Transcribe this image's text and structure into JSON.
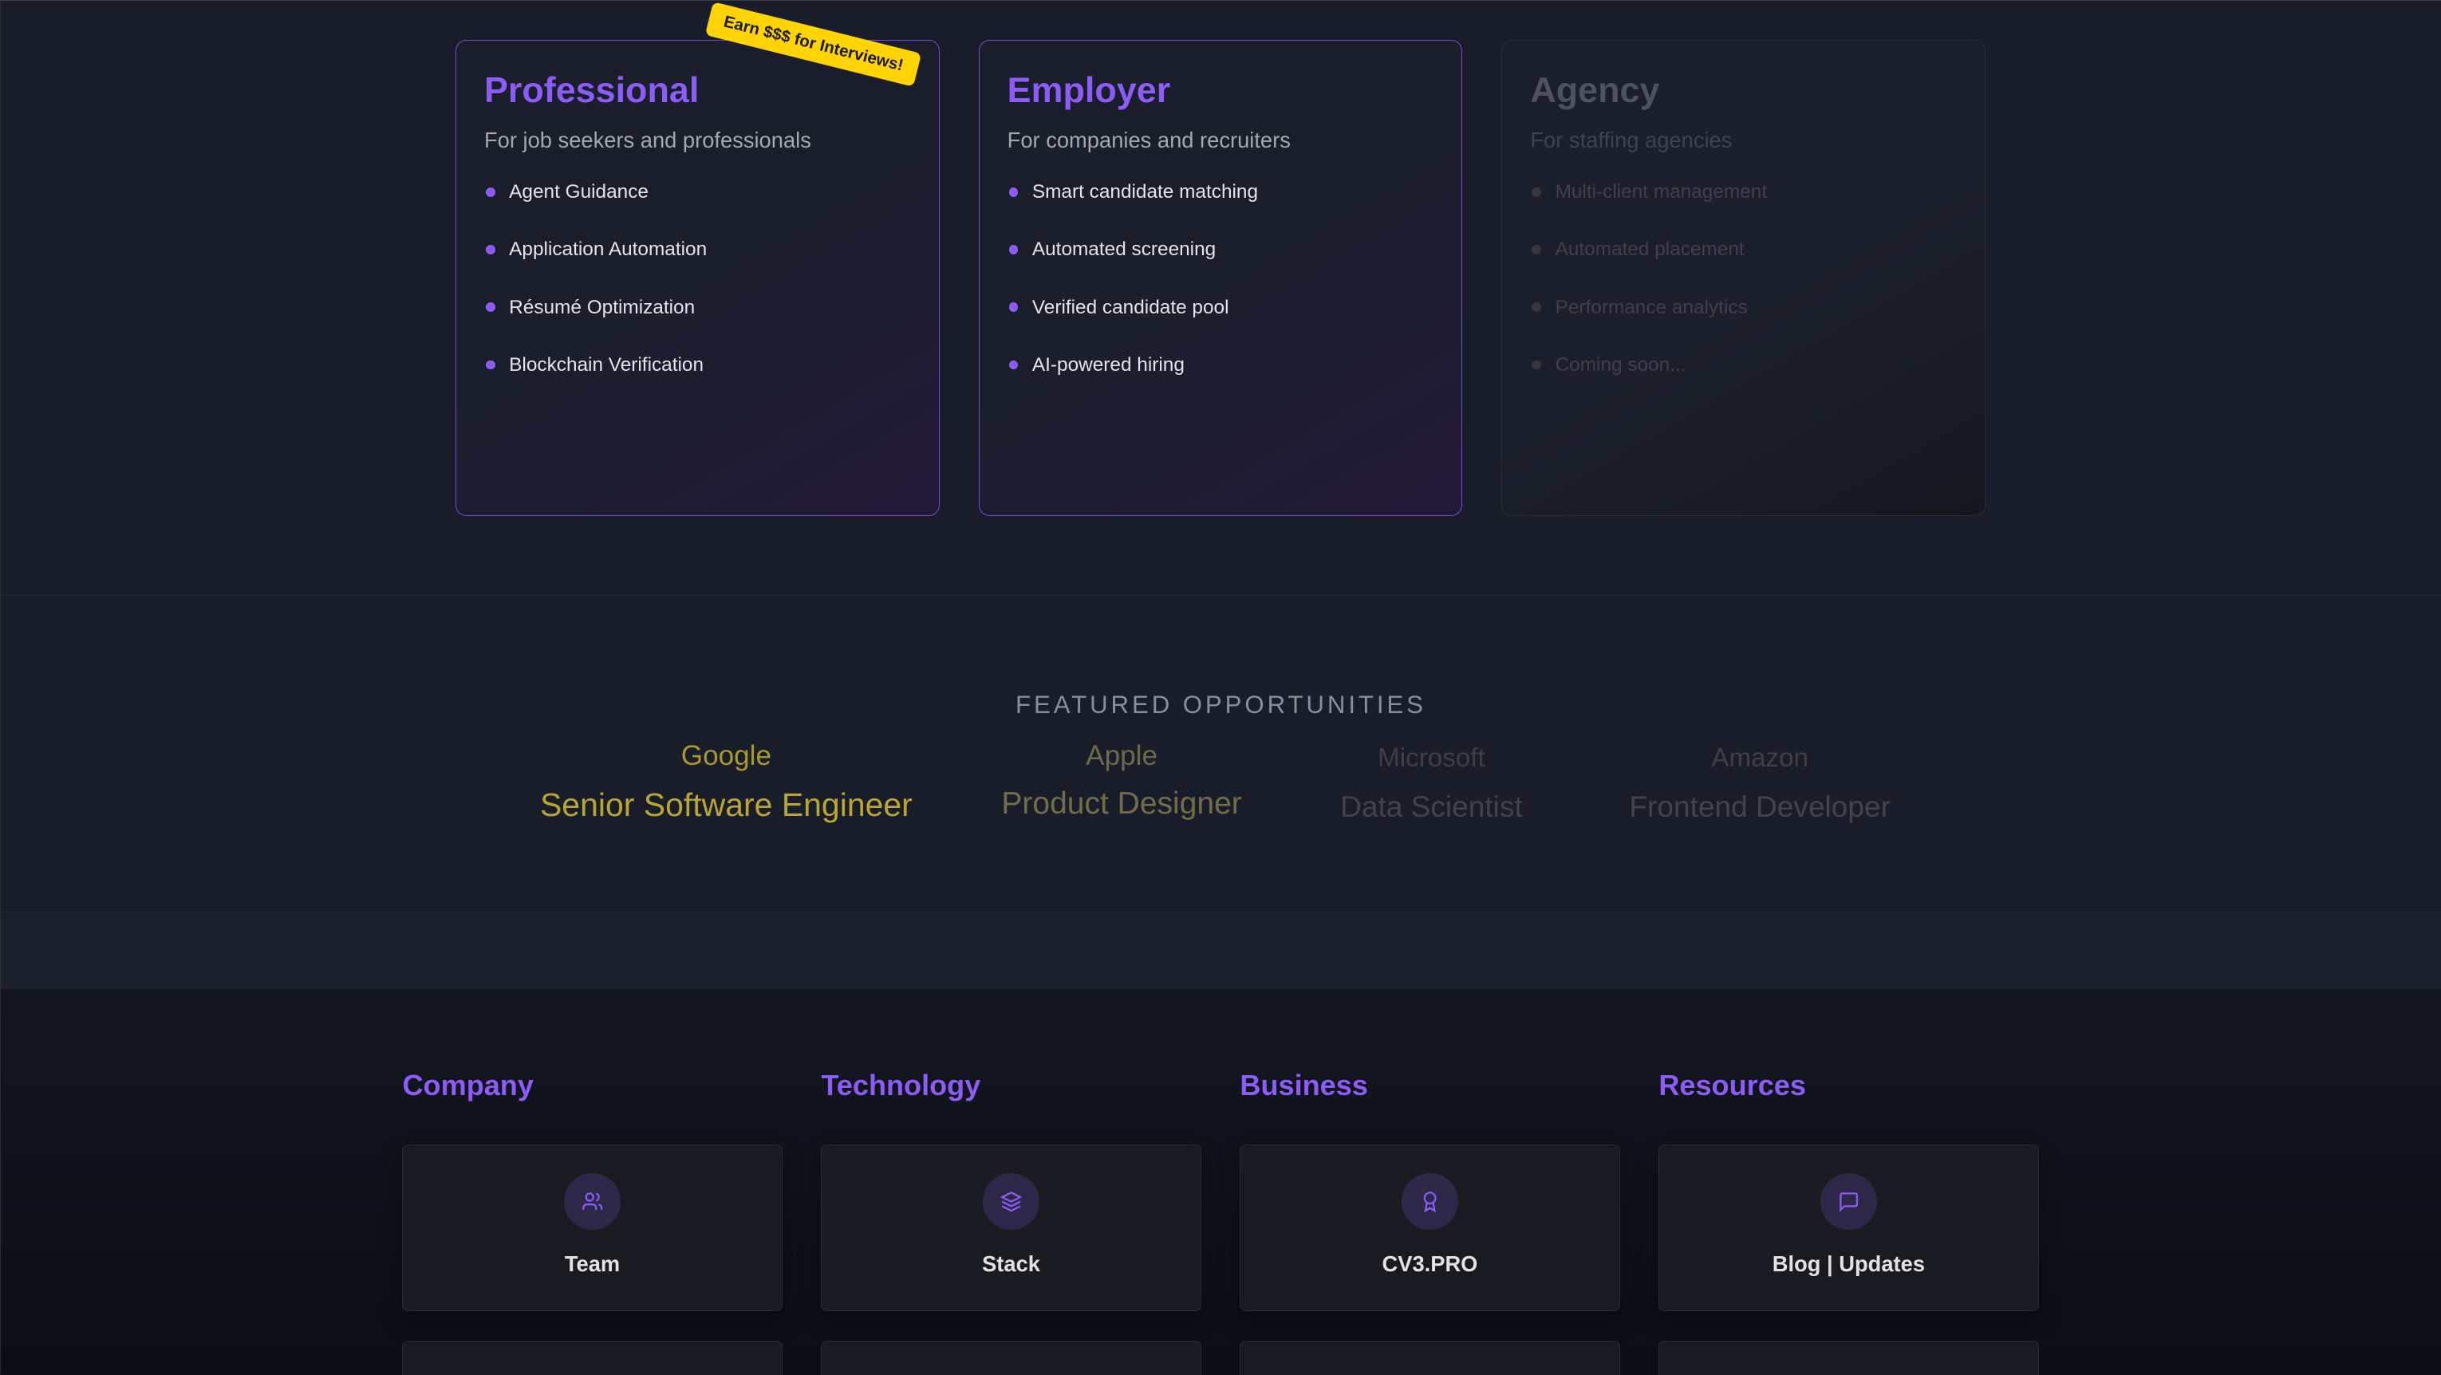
{
  "plans": [
    {
      "title": "Professional",
      "subtitle": "For job seekers and professionals",
      "features": [
        "Agent Guidance",
        "Application Automation",
        "Résumé Optimization",
        "Blockchain Verification"
      ],
      "badge": "Earn $$$ for Interviews!"
    },
    {
      "title": "Employer",
      "subtitle": "For companies and recruiters",
      "features": [
        "Smart candidate matching",
        "Automated screening",
        "Verified candidate pool",
        "AI-powered hiring"
      ]
    },
    {
      "title": "Agency",
      "subtitle": "For staffing agencies",
      "features": [
        "Multi-client management",
        "Automated placement",
        "Performance analytics",
        "Coming soon..."
      ],
      "disabled": true
    }
  ],
  "featured": {
    "title": "FEATURED OPPORTUNITIES",
    "items": [
      {
        "company": "Google",
        "role": "Senior Software Engineer",
        "company_color": "#a8982c",
        "role_color": "#b9a632"
      },
      {
        "company": "Apple",
        "role": "Product Designer",
        "company_color": "#6d6a4b",
        "role_color": "#716d4b"
      },
      {
        "company": "Microsoft",
        "role": "Data Scientist",
        "company_color": "#3c3f4a",
        "role_color": "#40434e"
      },
      {
        "company": "Amazon",
        "role": "Frontend Developer",
        "company_color": "#3d404b",
        "role_color": "#41444f"
      }
    ]
  },
  "footer": {
    "columns": [
      {
        "heading": "Company",
        "link": "Team",
        "icon": "users-icon"
      },
      {
        "heading": "Technology",
        "link": "Stack",
        "icon": "layers-icon"
      },
      {
        "heading": "Business",
        "link": "CV3.PRO",
        "icon": "award-icon"
      },
      {
        "heading": "Resources",
        "link": "Blog | Updates",
        "icon": "message-square-icon"
      }
    ]
  },
  "colors": {
    "accent": "#8b5cf6",
    "badge": "#ffd400"
  }
}
